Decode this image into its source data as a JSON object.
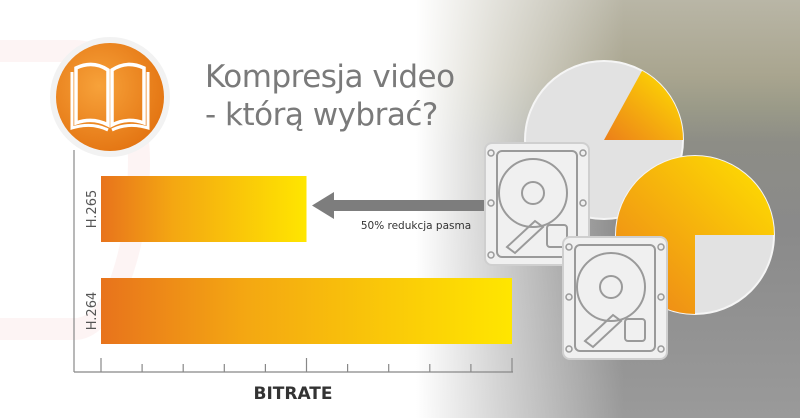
{
  "title": {
    "line1": "Kompresja video",
    "line2": "- którą wybrać?"
  },
  "icons": {
    "badge": "open-book-icon",
    "drives": "hard-drive-icon",
    "arrow": "arrow-left-icon"
  },
  "colors": {
    "orange": "#e8731c",
    "yellow": "#ffe600",
    "arrow_gray": "#7d7d7d",
    "title_gray": "#7a7a7a"
  },
  "annotation": "50% redukcja pasma",
  "chart_data": {
    "type": "bar",
    "orientation": "horizontal",
    "categories": [
      "H.265",
      "H.264"
    ],
    "values": [
      5,
      10
    ],
    "xlabel": "BITRATE",
    "ylabel": "",
    "xlim": [
      0,
      10
    ],
    "ticks": 10,
    "tick_labels": false,
    "grid": false
  },
  "pies": [
    {
      "orange_fraction": 0.17
    },
    {
      "orange_fraction": 0.75
    }
  ]
}
